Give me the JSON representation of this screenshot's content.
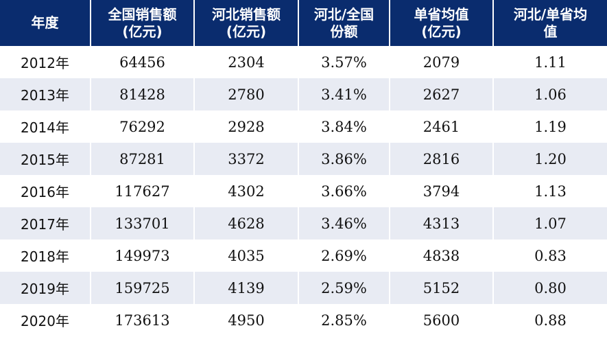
{
  "table": {
    "headers": [
      {
        "line1": "年度",
        "line2": ""
      },
      {
        "line1": "全国销售额",
        "line2": "(亿元)"
      },
      {
        "line1": "河北销售额",
        "line2": "(亿元)"
      },
      {
        "line1": "河北/全国",
        "line2": "份额"
      },
      {
        "line1": "单省均值",
        "line2": "(亿元)"
      },
      {
        "line1": "河北/单省均",
        "line2": "值"
      }
    ],
    "rows": [
      [
        "2012年",
        "64456",
        "2304",
        "3.57%",
        "2079",
        "1.11"
      ],
      [
        "2013年",
        "81428",
        "2780",
        "3.41%",
        "2627",
        "1.06"
      ],
      [
        "2014年",
        "76292",
        "2928",
        "3.84%",
        "2461",
        "1.19"
      ],
      [
        "2015年",
        "87281",
        "3372",
        "3.86%",
        "2816",
        "1.20"
      ],
      [
        "2016年",
        "117627",
        "4302",
        "3.66%",
        "3794",
        "1.13"
      ],
      [
        "2017年",
        "133701",
        "4628",
        "3.46%",
        "4313",
        "1.07"
      ],
      [
        "2018年",
        "149973",
        "4035",
        "2.69%",
        "4838",
        "0.83"
      ],
      [
        "2019年",
        "159725",
        "4139",
        "2.59%",
        "5152",
        "0.80"
      ],
      [
        "2020年",
        "173613",
        "4950",
        "2.85%",
        "5600",
        "0.88"
      ]
    ]
  },
  "colors": {
    "header_bg": "#0a2c6e",
    "header_text": "#ffffff",
    "row_alt_bg": "#e8ebf3"
  }
}
